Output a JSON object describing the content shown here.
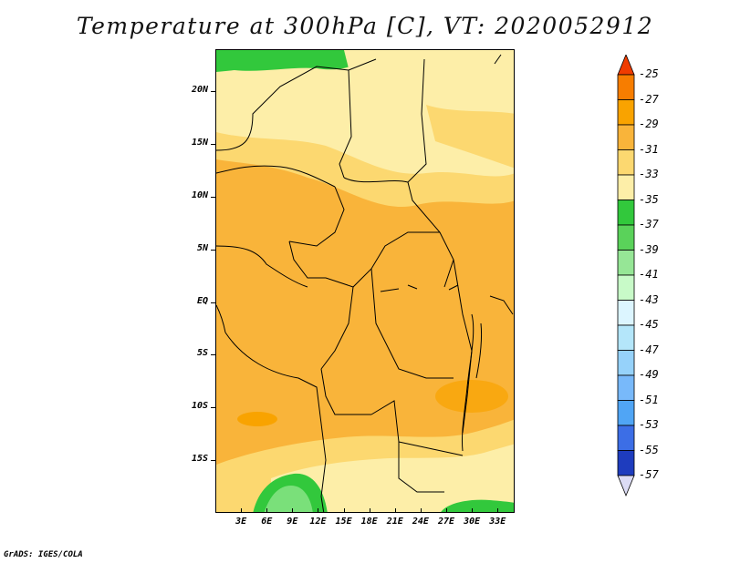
{
  "title": "Temperature at 300hPa [C], VT: 2020052912",
  "credit": "GrADS: IGES/COLA",
  "lat_ticks": [
    {
      "label": "20N",
      "value": 20
    },
    {
      "label": "15N",
      "value": 15
    },
    {
      "label": "10N",
      "value": 10
    },
    {
      "label": "5N",
      "value": 5
    },
    {
      "label": "EQ",
      "value": 0
    },
    {
      "label": "5S",
      "value": -5
    },
    {
      "label": "10S",
      "value": -10
    },
    {
      "label": "15S",
      "value": -15
    }
  ],
  "lon_ticks": [
    {
      "label": "3E",
      "value": 3
    },
    {
      "label": "6E",
      "value": 6
    },
    {
      "label": "9E",
      "value": 9
    },
    {
      "label": "12E",
      "value": 12
    },
    {
      "label": "15E",
      "value": 15
    },
    {
      "label": "18E",
      "value": 18
    },
    {
      "label": "21E",
      "value": 21
    },
    {
      "label": "24E",
      "value": 24
    },
    {
      "label": "27E",
      "value": 27
    },
    {
      "label": "30E",
      "value": 30
    },
    {
      "label": "33E",
      "value": 33
    }
  ],
  "lon_range": [
    0,
    35
  ],
  "lat_range": [
    -20,
    24
  ],
  "colorbar": {
    "labels": [
      "-25",
      "-27",
      "-29",
      "-31",
      "-33",
      "-35",
      "-37",
      "-39",
      "-41",
      "-43",
      "-45",
      "-47",
      "-49",
      "-51",
      "-53",
      "-55",
      "-57"
    ],
    "colors": [
      "#f03c00",
      "#f77d00",
      "#f9a300",
      "#f9b43a",
      "#fcd870",
      "#fdeea8",
      "#32c83c",
      "#5ad25a",
      "#96e696",
      "#c8fac8",
      "#dcf5ff",
      "#b4e6fa",
      "#96d2fa",
      "#78b9fa",
      "#50a5f5",
      "#3c6ee6",
      "#1e3cbe",
      "#1e1e96",
      "#dcdcf5"
    ]
  },
  "field_colors": {
    "green": "#32c83c",
    "light_green": "#7ae07a",
    "pale": "#fdeea8",
    "light_orange": "#fcd870",
    "orange": "#f9b43a"
  }
}
